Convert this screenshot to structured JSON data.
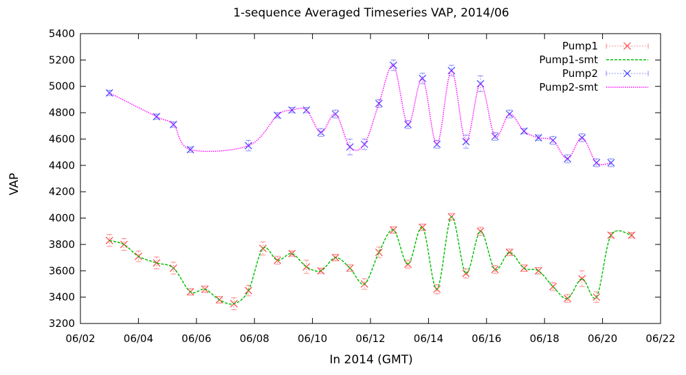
{
  "chart_data": {
    "type": "line",
    "title": "1-sequence Averaged Timeseries VAP, 2014/06",
    "xlabel": "In 2014 (GMT)",
    "ylabel": "VAP",
    "xlim": [
      "06/02",
      "06/22"
    ],
    "ylim": [
      3200,
      5400
    ],
    "x_ticks": [
      "06/02",
      "06/04",
      "06/06",
      "06/08",
      "06/10",
      "06/12",
      "06/14",
      "06/16",
      "06/18",
      "06/20",
      "06/22"
    ],
    "y_ticks": [
      3200,
      3400,
      3600,
      3800,
      4000,
      4200,
      4400,
      4600,
      4800,
      5000,
      5200,
      5400
    ],
    "grid": false,
    "legend_position": "top-right",
    "colors": {
      "pump1": "#ff4040",
      "pump1_smt": "#00c000",
      "pump2": "#4040ff",
      "pump2_smt": "#ff00ff"
    },
    "series": [
      {
        "name": "Pump1",
        "style": "points-errorbars",
        "x": [
          "06/03 00:00",
          "06/03 12:00",
          "06/04 00:00",
          "06/04 15:00",
          "06/05 05:00",
          "06/05 19:00",
          "06/06 07:00",
          "06/06 19:00",
          "06/07 07:00",
          "06/07 19:00",
          "06/08 07:00",
          "06/08 19:00",
          "06/09 07:00",
          "06/09 19:00",
          "06/10 07:00",
          "06/10 19:00",
          "06/11 07:00",
          "06/11 19:00",
          "06/12 07:00",
          "06/12 19:00",
          "06/13 07:00",
          "06/13 19:00",
          "06/14 07:00",
          "06/14 19:00",
          "06/15 07:00",
          "06/15 19:00",
          "06/16 07:00",
          "06/16 19:00",
          "06/17 07:00",
          "06/17 19:00",
          "06/18 07:00",
          "06/18 19:00",
          "06/19 07:00",
          "06/19 19:00",
          "06/20 07:00",
          "06/21 00:00"
        ],
        "y": [
          3830,
          3800,
          3710,
          3660,
          3620,
          3440,
          3460,
          3380,
          3350,
          3450,
          3770,
          3680,
          3730,
          3630,
          3600,
          3700,
          3620,
          3500,
          3740,
          3910,
          3650,
          3930,
          3460,
          4010,
          3580,
          3900,
          3610,
          3740,
          3620,
          3600,
          3480,
          3390,
          3540,
          3400,
          3870,
          3870
        ],
        "error": [
          45,
          45,
          40,
          45,
          45,
          25,
          25,
          25,
          45,
          40,
          50,
          30,
          20,
          50,
          20,
          25,
          25,
          40,
          40,
          25,
          30,
          25,
          35,
          25,
          35,
          30,
          30,
          25,
          25,
          25,
          30,
          30,
          60,
          40,
          20,
          20
        ]
      },
      {
        "name": "Pump1-smt",
        "style": "dashed-line",
        "x": [
          "06/03 00:00",
          "06/03 12:00",
          "06/04 00:00",
          "06/04 15:00",
          "06/05 05:00",
          "06/05 19:00",
          "06/06 07:00",
          "06/06 19:00",
          "06/07 07:00",
          "06/07 19:00",
          "06/08 07:00",
          "06/08 19:00",
          "06/09 07:00",
          "06/09 19:00",
          "06/10 07:00",
          "06/10 19:00",
          "06/11 07:00",
          "06/11 19:00",
          "06/12 07:00",
          "06/12 19:00",
          "06/13 07:00",
          "06/13 19:00",
          "06/14 07:00",
          "06/14 19:00",
          "06/15 07:00",
          "06/15 19:00",
          "06/16 07:00",
          "06/16 19:00",
          "06/17 07:00",
          "06/17 19:00",
          "06/18 07:00",
          "06/18 19:00",
          "06/19 07:00",
          "06/19 19:00",
          "06/20 07:00",
          "06/21 00:00"
        ],
        "y": [
          3830,
          3800,
          3710,
          3660,
          3620,
          3440,
          3460,
          3380,
          3350,
          3450,
          3770,
          3680,
          3730,
          3630,
          3600,
          3700,
          3620,
          3500,
          3740,
          3910,
          3650,
          3930,
          3460,
          4010,
          3580,
          3900,
          3610,
          3740,
          3620,
          3600,
          3480,
          3390,
          3540,
          3400,
          3870,
          3870
        ]
      },
      {
        "name": "Pump2",
        "style": "points-errorbars",
        "x": [
          "06/03 00:00",
          "06/04 15:00",
          "06/05 05:00",
          "06/05 19:00",
          "06/07 19:00",
          "06/08 19:00",
          "06/09 07:00",
          "06/09 19:00",
          "06/10 07:00",
          "06/10 19:00",
          "06/11 07:00",
          "06/11 19:00",
          "06/12 07:00",
          "06/12 19:00",
          "06/13 07:00",
          "06/13 19:00",
          "06/14 07:00",
          "06/14 19:00",
          "06/15 07:00",
          "06/15 19:00",
          "06/16 07:00",
          "06/16 19:00",
          "06/17 07:00",
          "06/17 19:00",
          "06/18 07:00",
          "06/18 19:00",
          "06/19 07:00",
          "06/19 19:00",
          "06/20 07:00"
        ],
        "y": [
          4950,
          4770,
          4710,
          4520,
          4550,
          4780,
          4820,
          4820,
          4650,
          4790,
          4540,
          4560,
          4870,
          5160,
          4710,
          5060,
          4560,
          5120,
          4580,
          5020,
          4620,
          4790,
          4660,
          4610,
          4590,
          4450,
          4610,
          4420,
          4420
        ],
        "error": [
          20,
          20,
          20,
          20,
          40,
          20,
          20,
          20,
          30,
          30,
          60,
          40,
          30,
          40,
          30,
          40,
          30,
          40,
          50,
          60,
          30,
          30,
          20,
          20,
          30,
          30,
          30,
          30,
          30
        ]
      },
      {
        "name": "Pump2-smt",
        "style": "dotted-line",
        "x": [
          "06/03 00:00",
          "06/04 15:00",
          "06/05 05:00",
          "06/05 19:00",
          "06/07 19:00",
          "06/08 19:00",
          "06/09 07:00",
          "06/09 19:00",
          "06/10 07:00",
          "06/10 19:00",
          "06/11 07:00",
          "06/11 19:00",
          "06/12 07:00",
          "06/12 19:00",
          "06/13 07:00",
          "06/13 19:00",
          "06/14 07:00",
          "06/14 19:00",
          "06/15 07:00",
          "06/15 19:00",
          "06/16 07:00",
          "06/16 19:00",
          "06/17 07:00",
          "06/17 19:00",
          "06/18 07:00",
          "06/18 19:00",
          "06/19 07:00",
          "06/19 19:00",
          "06/20 07:00"
        ],
        "y": [
          4950,
          4770,
          4710,
          4520,
          4550,
          4780,
          4820,
          4820,
          4650,
          4790,
          4540,
          4560,
          4870,
          5160,
          4710,
          5060,
          4560,
          5120,
          4580,
          5020,
          4620,
          4790,
          4660,
          4610,
          4590,
          4450,
          4610,
          4420,
          4420
        ]
      }
    ]
  }
}
